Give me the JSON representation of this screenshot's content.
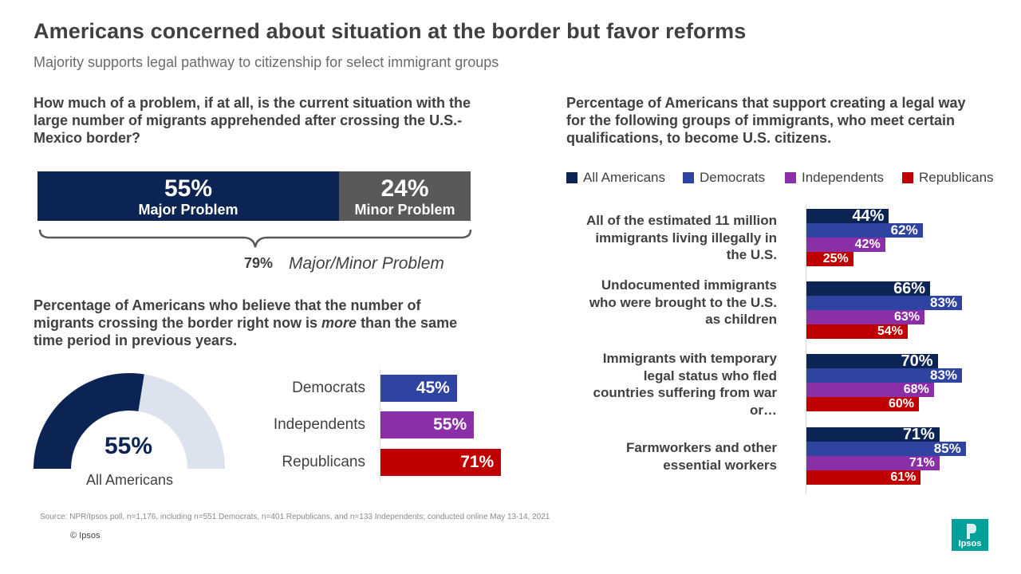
{
  "title": "Americans concerned about situation at the border but favor reforms",
  "subtitle": "Majority supports legal pathway to citizenship for select immigrant  groups",
  "colors": {
    "all_americans": "#0b2454",
    "democrats": "#2e44a0",
    "independents": "#8a2fa8",
    "republicans": "#c00000",
    "minor": "#595959",
    "donut_rest": "#dde2ef",
    "logo": "#00a19a"
  },
  "problem": {
    "question": "How much of a problem,  if at all, is the current situation with the large number of migrants  apprehended after crossing  the U.S.- Mexico border?",
    "major_pct": "55%",
    "major_label": "Major Problem",
    "minor_pct": "24%",
    "minor_label": "Minor Problem",
    "combined_pct": "79%",
    "combined_label": "Major/Minor Problem"
  },
  "more": {
    "question_pre": "Percentage of Americans who believe that the number of migrants crossing the border right now is ",
    "question_em": "more",
    "question_post": " than the same time period in previous years.",
    "all_pct": "55%",
    "all_label": "All Americans",
    "parties": [
      {
        "label": "Democrats",
        "pct": "45%"
      },
      {
        "label": "Independents",
        "pct": "55%"
      },
      {
        "label": "Republicans",
        "pct": "71%"
      }
    ]
  },
  "support": {
    "question": "Percentage of Americans that support creating  a legal way for the following  groups of immigrants, who meet certain qualifications,  to become U.S. citizens.",
    "legend": [
      "All Americans",
      "Democrats",
      "Independents",
      "Republicans"
    ],
    "groups": [
      {
        "label": "All of the estimated 11 million immigrants living illegally in the U.S.",
        "pcts": [
          "44%",
          "62%",
          "42%",
          "25%"
        ]
      },
      {
        "label": "Undocumented immigrants who were brought to the U.S. as children",
        "pcts": [
          "66%",
          "83%",
          "63%",
          "54%"
        ]
      },
      {
        "label": "Immigrants with temporary legal status who fled countries suffering from war or…",
        "pcts": [
          "70%",
          "83%",
          "68%",
          "60%"
        ]
      },
      {
        "label": "Farmworkers and other essential workers",
        "pcts": [
          "71%",
          "85%",
          "71%",
          "61%"
        ]
      }
    ]
  },
  "chart_data": [
    {
      "type": "bar",
      "orientation": "horizontal-stacked",
      "title": "How much of a problem, if at all, is the current situation with the large number of migrants apprehended after crossing the U.S.- Mexico border?",
      "categories": [
        "Major Problem",
        "Minor Problem"
      ],
      "values": [
        55,
        24
      ],
      "total": 79,
      "total_label": "Major/Minor Problem"
    },
    {
      "type": "pie",
      "subtype": "half-donut",
      "title": "Percentage of Americans who believe that the number of migrants crossing the border right now is more than the same time period in previous years.",
      "categories": [
        "All Americans"
      ],
      "values": [
        55
      ]
    },
    {
      "type": "bar",
      "orientation": "horizontal",
      "categories": [
        "Democrats",
        "Independents",
        "Republicans"
      ],
      "values": [
        45,
        55,
        71
      ],
      "xlim": [
        0,
        100
      ]
    },
    {
      "type": "bar",
      "orientation": "horizontal-grouped",
      "title": "Percentage of Americans that support creating a legal way for the following groups of immigrants, who meet certain qualifications, to become U.S. citizens.",
      "categories": [
        "All of the estimated 11 million immigrants living illegally in the U.S.",
        "Undocumented immigrants who were brought to the U.S. as children",
        "Immigrants with temporary legal status who fled countries suffering from war or…",
        "Farmworkers and other essential workers"
      ],
      "series": [
        {
          "name": "All Americans",
          "values": [
            44,
            66,
            70,
            71
          ]
        },
        {
          "name": "Democrats",
          "values": [
            62,
            83,
            83,
            85
          ]
        },
        {
          "name": "Independents",
          "values": [
            42,
            63,
            68,
            71
          ]
        },
        {
          "name": "Republicans",
          "values": [
            25,
            54,
            60,
            61
          ]
        }
      ],
      "xlim": [
        0,
        100
      ]
    }
  ],
  "footer": {
    "source": "Source: NPR/Ipsos  poll,  n=1,176, including n=551 Democrats, n=401 Republicans, and n=133 Independents;  conducted online May 13-14, 2021",
    "copyright": "© Ipsos",
    "logo_text": "Ipsos"
  }
}
